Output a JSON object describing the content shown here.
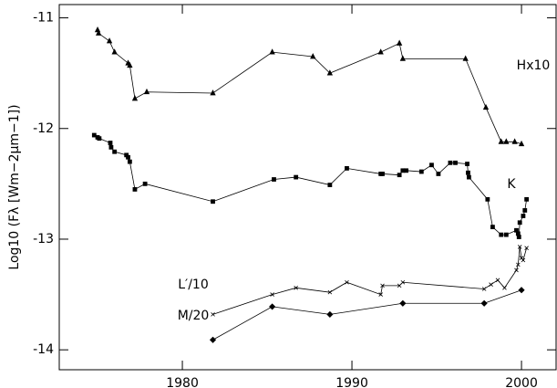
{
  "chart_data": {
    "type": "line",
    "y_label": "Log10 (Fλ [Wm−2μm−1])",
    "xlim": [
      1972.74,
      2002.04
    ],
    "xticks": [
      1980,
      1990,
      2000
    ],
    "ylim": [
      -14.18,
      -10.88
    ],
    "yticks": [
      -11,
      -12,
      -13,
      -14
    ],
    "grid": false,
    "series": [
      {
        "name": "Hx10",
        "color": "#000000",
        "marker": "triangle",
        "x": [
          1975.0,
          1975.06,
          1975.7,
          1976.0,
          1976.8,
          1976.9,
          1977.2,
          1977.9,
          1981.8,
          1985.3,
          1987.7,
          1988.7,
          1991.7,
          1992.8,
          1993.0,
          1996.7,
          1997.9,
          1998.8,
          1999.1,
          1999.6,
          2000.0
        ],
        "values": [
          -11.11,
          -11.14,
          -11.21,
          -11.31,
          -11.41,
          -11.43,
          -11.73,
          -11.67,
          -11.68,
          -11.31,
          -11.35,
          -11.5,
          -11.31,
          -11.23,
          -11.37,
          -11.37,
          -11.81,
          -12.12,
          -12.12,
          -12.12,
          -12.14
        ]
      },
      {
        "name": "K",
        "color": "#000000",
        "marker": "square",
        "x": [
          1974.8,
          1975.0,
          1975.1,
          1975.75,
          1975.8,
          1976.0,
          1976.7,
          1976.8,
          1976.9,
          1977.2,
          1977.8,
          1981.8,
          1985.4,
          1986.7,
          1988.7,
          1989.7,
          1991.7,
          1991.8,
          1992.8,
          1993.0,
          1993.2,
          1994.1,
          1994.7,
          1995.1,
          1995.8,
          1996.1,
          1996.8,
          1996.85,
          1996.9,
          1998.0,
          1998.3,
          1998.8,
          1999.1,
          1999.7,
          1999.8,
          1999.85,
          1999.9,
          2000.1,
          2000.2,
          2000.3
        ],
        "values": [
          -12.06,
          -12.08,
          -12.09,
          -12.13,
          -12.17,
          -12.21,
          -12.24,
          -12.26,
          -12.3,
          -12.55,
          -12.5,
          -12.66,
          -12.46,
          -12.44,
          -12.51,
          -12.36,
          -12.41,
          -12.41,
          -12.42,
          -12.38,
          -12.38,
          -12.39,
          -12.33,
          -12.41,
          -12.31,
          -12.31,
          -12.32,
          -12.4,
          -12.44,
          -12.64,
          -12.89,
          -12.96,
          -12.96,
          -12.92,
          -12.95,
          -12.98,
          -12.85,
          -12.79,
          -12.74,
          -12.64
        ]
      },
      {
        "name": "L′/10",
        "color": "#000000",
        "marker": "cross",
        "x": [
          1981.8,
          1985.3,
          1986.7,
          1988.7,
          1989.7,
          1991.7,
          1991.8,
          1992.8,
          1993.0,
          1997.8,
          1998.2,
          1998.6,
          1999.0,
          1999.7,
          1999.8,
          1999.9,
          2000.0,
          2000.1,
          2000.3
        ],
        "values": [
          -13.68,
          -13.5,
          -13.44,
          -13.48,
          -13.39,
          -13.5,
          -13.42,
          -13.42,
          -13.39,
          -13.45,
          -13.41,
          -13.37,
          -13.44,
          -13.28,
          -13.23,
          -13.07,
          -13.17,
          -13.19,
          -13.08
        ]
      },
      {
        "name": "M/20",
        "color": "#000000",
        "marker": "diamond",
        "x": [
          1981.8,
          1985.3,
          1988.7,
          1993.0,
          1997.8,
          2000.0
        ],
        "values": [
          -13.91,
          -13.61,
          -13.68,
          -13.58,
          -13.58,
          -13.46
        ]
      }
    ]
  }
}
